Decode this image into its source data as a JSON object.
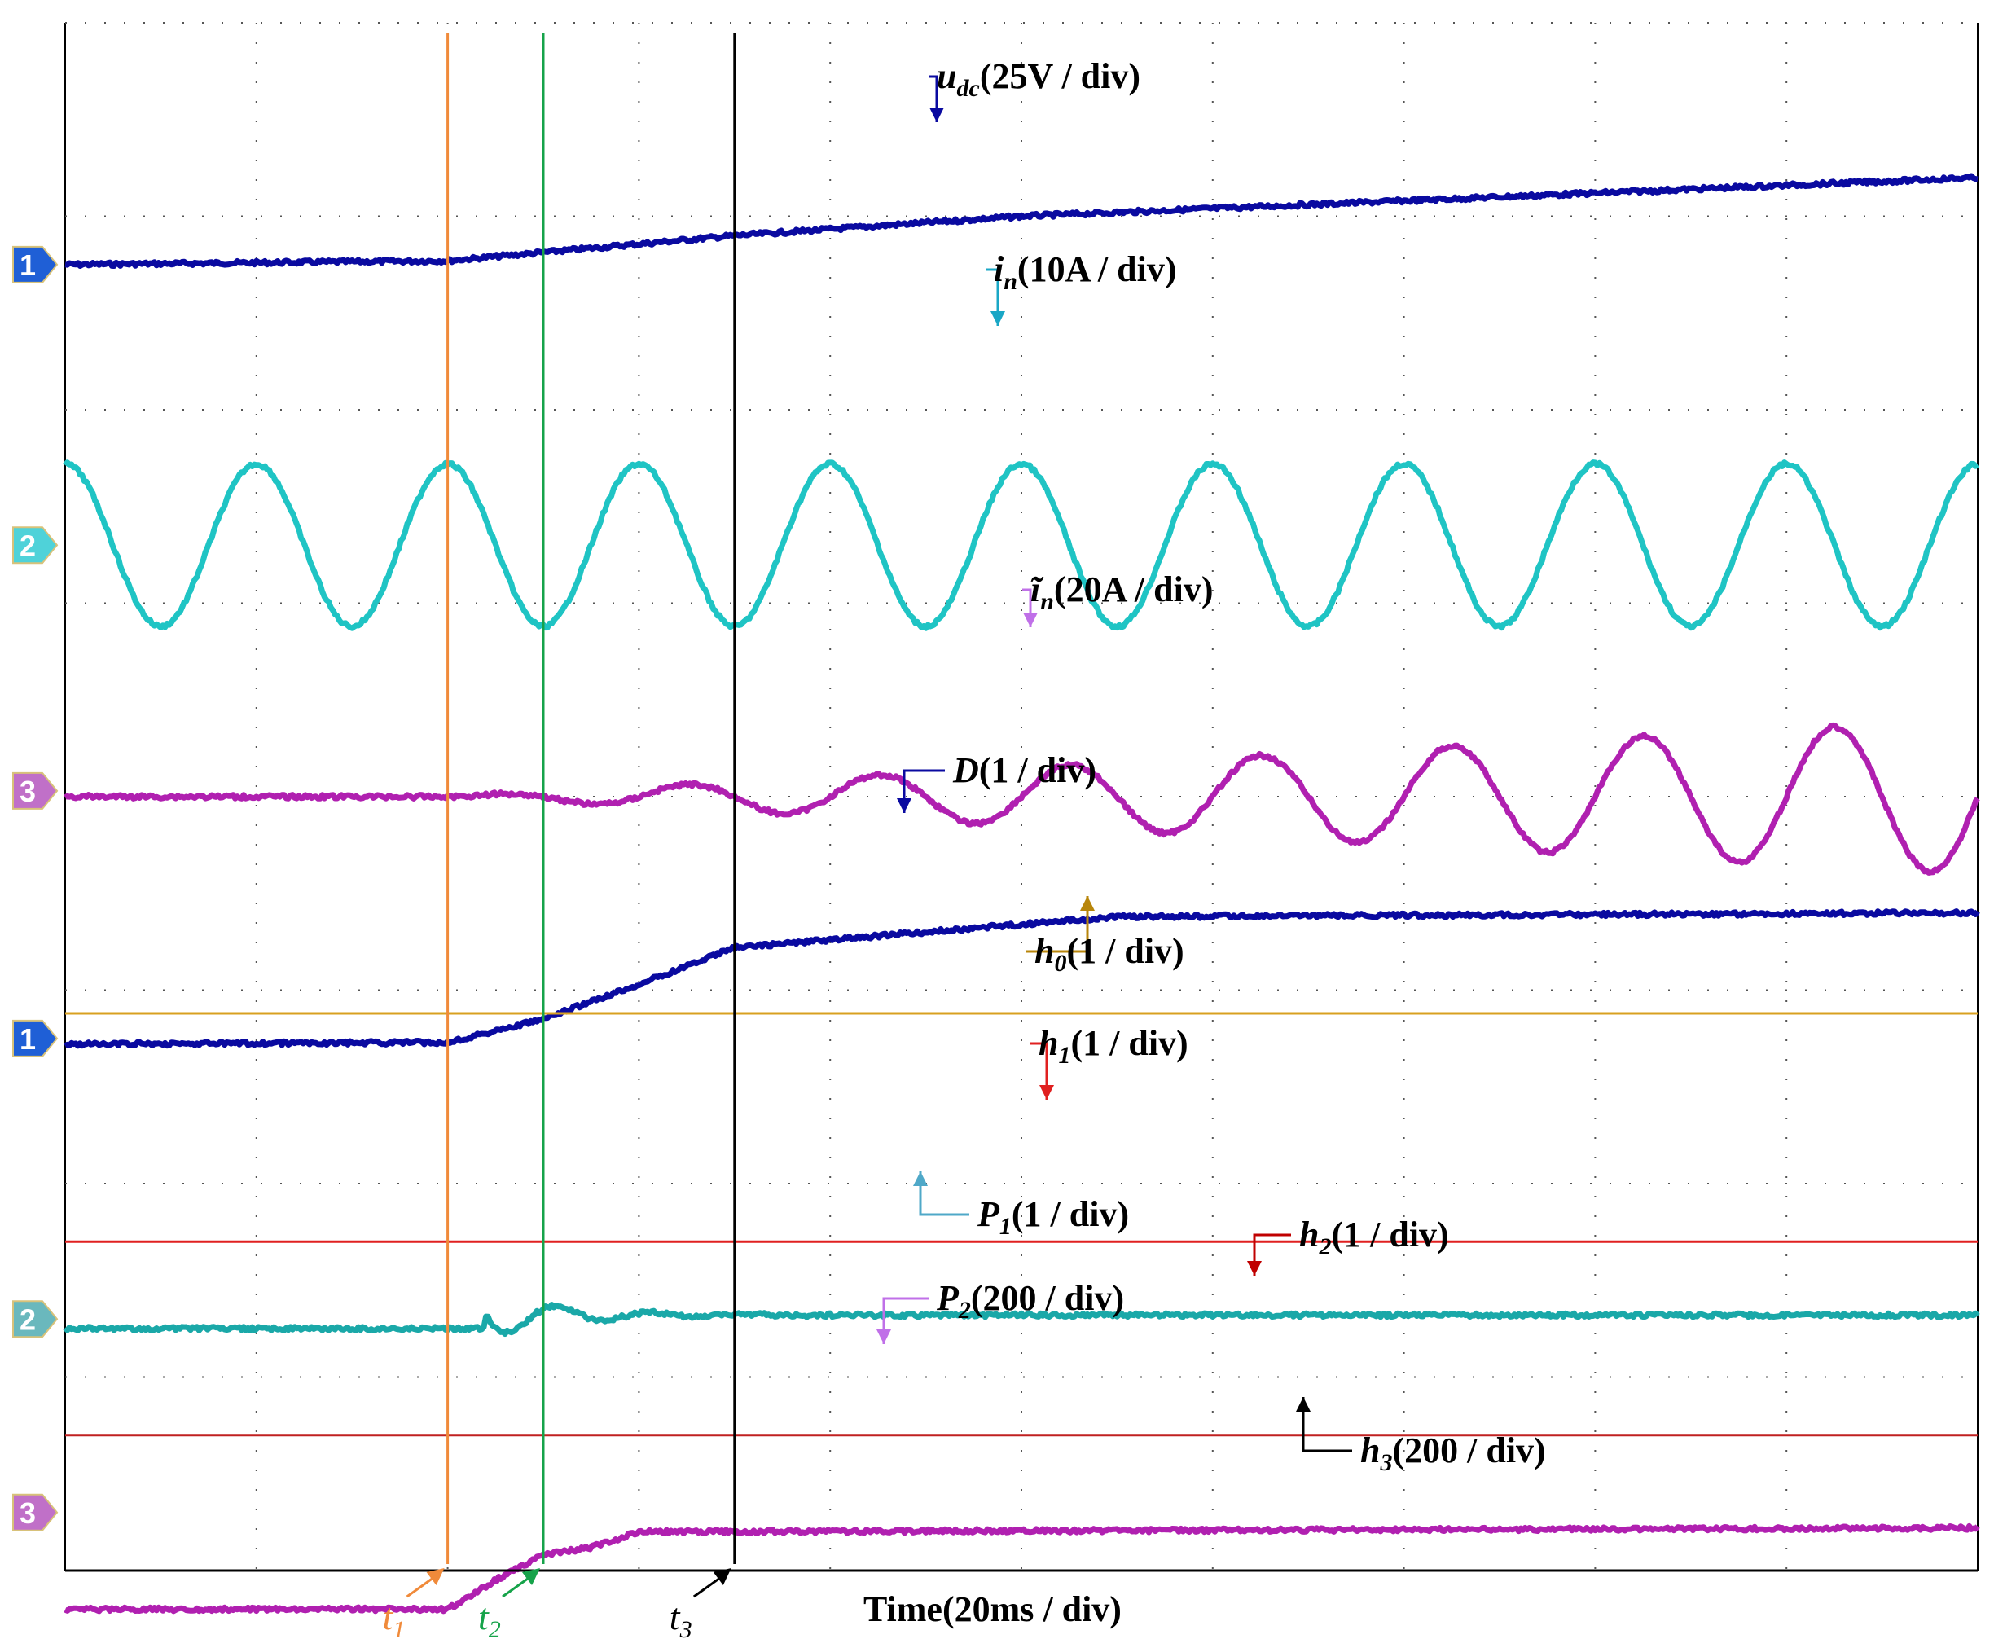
{
  "chart_data": {
    "type": "line",
    "title": "",
    "xlabel": "Time(20ms / div)",
    "grid": true,
    "grid_divisions": {
      "x": 10,
      "y": 8
    },
    "x_per_div_ms": 20,
    "cursors": [
      {
        "name": "t1",
        "time_ms": 40,
        "color": "#f08a3a"
      },
      {
        "name": "t2",
        "time_ms": 50,
        "color": "#16a34a"
      },
      {
        "name": "t3",
        "time_ms": 70,
        "color": "#000000"
      }
    ],
    "channel_markers": [
      {
        "number": "1",
        "color": "#1f5fd6",
        "level_div": 1.25
      },
      {
        "number": "2",
        "color": "#4fd2d9",
        "level_div": 2.7
      },
      {
        "number": "3",
        "color": "#c070c8",
        "level_div": 3.97
      },
      {
        "number": "1",
        "color": "#1f5fd6",
        "level_div": 5.25
      },
      {
        "number": "2",
        "color": "#6ab8bd",
        "level_div": 6.7
      },
      {
        "number": "3",
        "color": "#c070c8",
        "level_div": 7.7
      }
    ],
    "series": [
      {
        "name": "u",
        "sub": "dc",
        "scale": "(25V / div)",
        "color": "#0a0aa0",
        "label_color": "#0a0aa0",
        "kind": "ramp_dc",
        "x": [
          0,
          40,
          70,
          100,
          150,
          200
        ],
        "y": [
          1.25,
          1.23,
          1.1,
          1.0,
          0.9,
          0.8
        ]
      },
      {
        "name": "i",
        "sub": "n",
        "scale": "(10A / div)",
        "color": "#1fc4c4",
        "label_color": "#1aa7c6",
        "kind": "sine",
        "center": 2.7,
        "amplitude": 0.42,
        "period_ms": 20,
        "phase_ms": 5
      },
      {
        "name": "ĩ",
        "sub": "n",
        "scale": "(20A / div)",
        "color": "#b020b0",
        "label_color": "#c070e8",
        "kind": "growing_sine",
        "center": 4.0,
        "start_ms": 50,
        "amp_end": 0.4,
        "period_ms": 20
      },
      {
        "name": "D",
        "sub": "",
        "scale": "(1 / div)",
        "color": "#0a0aa0",
        "label_color": "#0a0aa0",
        "kind": "step",
        "x": [
          0,
          40,
          50,
          60,
          70,
          90,
          110,
          200
        ],
        "y": [
          5.28,
          5.27,
          5.15,
          4.97,
          4.78,
          4.7,
          4.62,
          4.6
        ]
      },
      {
        "name": "h",
        "sub": "0",
        "scale": "(1 / div)",
        "color": "#d8a020",
        "label_color": "#b8860b",
        "kind": "flat",
        "level": 5.12
      },
      {
        "name": "h",
        "sub": "1",
        "scale": "(1 / div)",
        "color": "#e02020",
        "label_color": "#e02020",
        "kind": "flat",
        "level": 6.3
      },
      {
        "name": "P",
        "sub": "1",
        "scale": "(1 / div)",
        "color": "#1aa8a8",
        "label_color": "#4fa8c8",
        "kind": "oscillating_settle",
        "base": 6.75,
        "settle": 6.68,
        "start_ms": 44
      },
      {
        "name": "h",
        "sub": "2",
        "scale": "(1 / div)",
        "color": "#c02020",
        "label_color": "#c00000",
        "kind": "flat",
        "level": 7.3
      },
      {
        "name": "P",
        "sub": "2",
        "scale": "(200 / div)",
        "color": "#b020b0",
        "label_color": "#c070e8",
        "kind": "step",
        "x": [
          0,
          40,
          45,
          50,
          55,
          60,
          200
        ],
        "y": [
          8.2,
          8.2,
          8.05,
          7.92,
          7.88,
          7.8,
          7.78
        ]
      },
      {
        "name": "h",
        "sub": "3",
        "scale": "(200 / div)",
        "color": "#000000",
        "label_color": "#000000",
        "kind": "flat",
        "level": 8.0
      }
    ]
  }
}
